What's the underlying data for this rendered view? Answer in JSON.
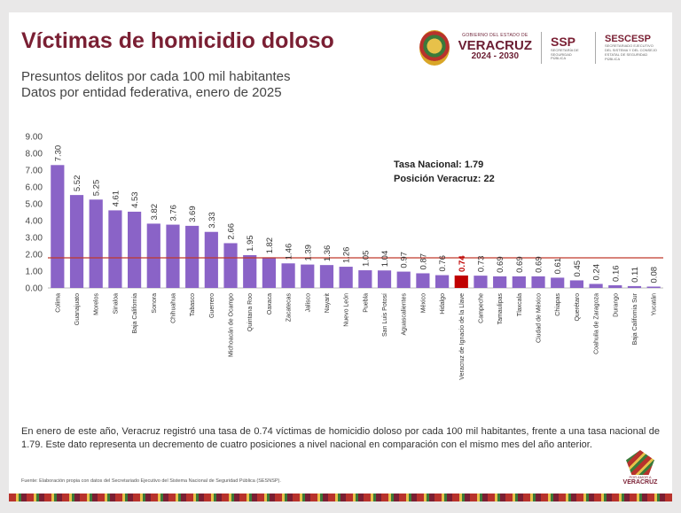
{
  "header": {
    "title": "Víctimas de homicidio doloso",
    "subtitle1": "Presuntos delitos por cada 100 mil habitantes",
    "subtitle2": "Datos por entidad federativa, enero de 2025"
  },
  "logos": {
    "gov_line1": "GOBIERNO DEL ESTADO DE",
    "gov_line2": "VERACRUZ",
    "gov_line3": "2024 - 2030",
    "ssp_name": "SSP",
    "ssp_desc": "SECRETARÍA DE SEGURIDAD PÚBLICA",
    "sescesp_name": "SESCESP",
    "sescesp_desc": "SECRETARIADO EJECUTIVO DEL SISTEMA Y DEL CONSEJO ESTATAL DE SEGURIDAD PÚBLICA"
  },
  "annotation": {
    "line1": "Tasa Nacional: 1.79",
    "line2": "Posición Veracruz: 22"
  },
  "colors": {
    "bar": "#8a63c7",
    "highlight": "#c00000",
    "reference_line": "#c0392b",
    "title": "#7a1f33"
  },
  "chart_data": {
    "type": "bar",
    "categories": [
      "Colima",
      "Guanajuato",
      "Morelos",
      "Sinaloa",
      "Baja California",
      "Sonora",
      "Chihuahua",
      "Tabasco",
      "Guerrero",
      "Michoacán de Ocampo",
      "Quintana Roo",
      "Oaxaca",
      "Zacatecas",
      "Jalisco",
      "Nayarit",
      "Nuevo León",
      "Puebla",
      "San Luis Potosí",
      "Aguascalientes",
      "México",
      "Hidalgo",
      "Veracruz de Ignacio de la Llave",
      "Campeche",
      "Tamaulipas",
      "Tlaxcala",
      "Ciudad de México",
      "Chiapas",
      "Querétaro",
      "Coahuila de Zaragoza",
      "Durango",
      "Baja California Sur",
      "Yucatán"
    ],
    "values": [
      7.3,
      5.52,
      5.25,
      4.61,
      4.53,
      3.82,
      3.76,
      3.69,
      3.33,
      2.66,
      1.95,
      1.82,
      1.46,
      1.39,
      1.36,
      1.26,
      1.05,
      1.04,
      0.97,
      0.87,
      0.76,
      0.74,
      0.73,
      0.69,
      0.69,
      0.69,
      0.61,
      0.45,
      0.24,
      0.16,
      0.11,
      0.08
    ],
    "value_labels": [
      "7.30",
      "5.52",
      "5.25",
      "4.61",
      "4.53",
      "3.82",
      "3.76",
      "3.69",
      "3.33",
      "2.66",
      "1.95",
      "1.82",
      "1.46",
      "1.39",
      "1.36",
      "1.26",
      "1.05",
      "1.04",
      "0.97",
      "0.87",
      "0.76",
      "0.74",
      "0.73",
      "0.69",
      "0.69",
      "0.69",
      "0.61",
      "0.45",
      "0.24",
      "0.16",
      "0.11",
      "0.08"
    ],
    "highlight_index": 21,
    "reference_value": 1.79,
    "ylim": [
      0,
      9
    ],
    "yticks": [
      "0.00",
      "1.00",
      "2.00",
      "3.00",
      "4.00",
      "5.00",
      "6.00",
      "7.00",
      "8.00",
      "9.00"
    ],
    "grid": false
  },
  "footer": {
    "paragraph": "En enero de este año, Veracruz registró una tasa de 0.74 víctimas de homicidio doloso por cada 100 mil habitantes, frente a una tasa nacional de 1.79. Este dato representa un decremento de cuatro posiciones a nivel nacional en comparación con el mismo mes del año anterior.",
    "source": "Fuente: Elaboración propia con datos del Secretariado Ejecutivo del Sistema Nacional de Seguridad Pública (SESNSP).",
    "brand_line1": "POR AMOR A",
    "brand_line2": "VERACRUZ"
  }
}
